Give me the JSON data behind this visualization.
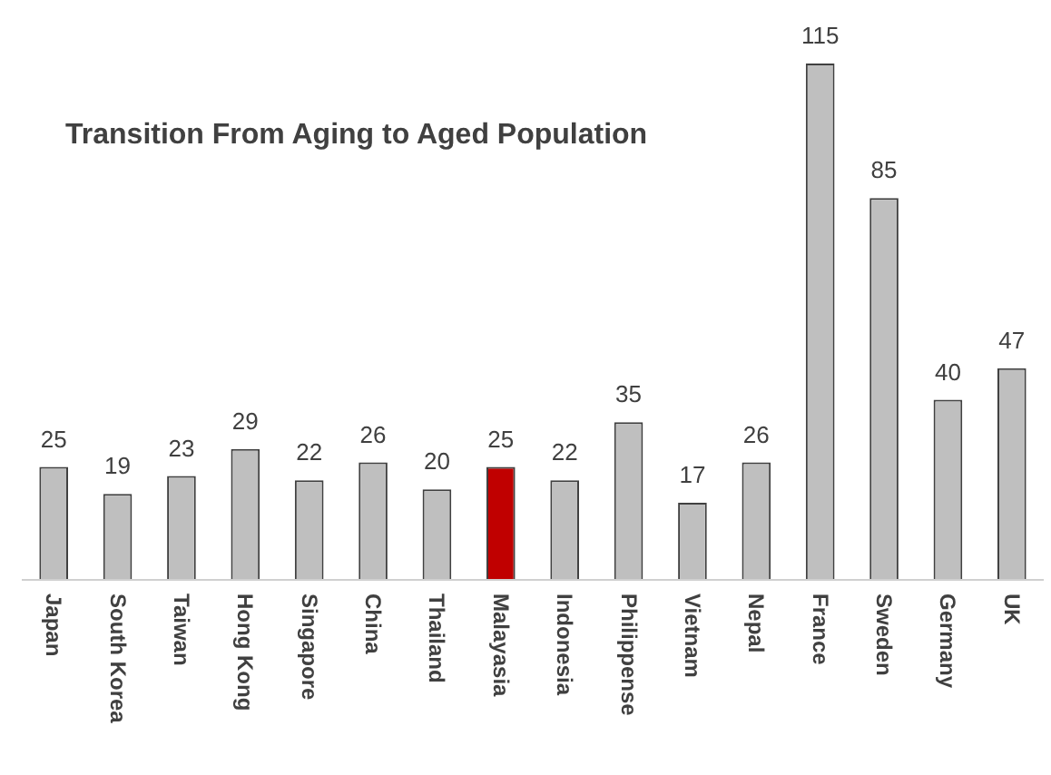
{
  "chart_data": {
    "type": "bar",
    "title": "Transition From Aging to Aged Population",
    "categories": [
      "Japan",
      "South Korea",
      "Taiwan",
      "Hong Kong",
      "Singapore",
      "China",
      "Thailand",
      "Malayasia",
      "Indonesia",
      "Philippense",
      "Vietnam",
      "Nepal",
      "France",
      "Sweden",
      "Germany",
      "UK"
    ],
    "values": [
      25,
      19,
      23,
      29,
      22,
      26,
      20,
      25,
      22,
      35,
      17,
      26,
      115,
      85,
      40,
      47
    ],
    "colors": [
      "#bfbfbf",
      "#bfbfbf",
      "#bfbfbf",
      "#bfbfbf",
      "#bfbfbf",
      "#bfbfbf",
      "#bfbfbf",
      "#c00000",
      "#bfbfbf",
      "#bfbfbf",
      "#bfbfbf",
      "#bfbfbf",
      "#bfbfbf",
      "#bfbfbf",
      "#bfbfbf",
      "#bfbfbf"
    ],
    "data_labels": true
  }
}
